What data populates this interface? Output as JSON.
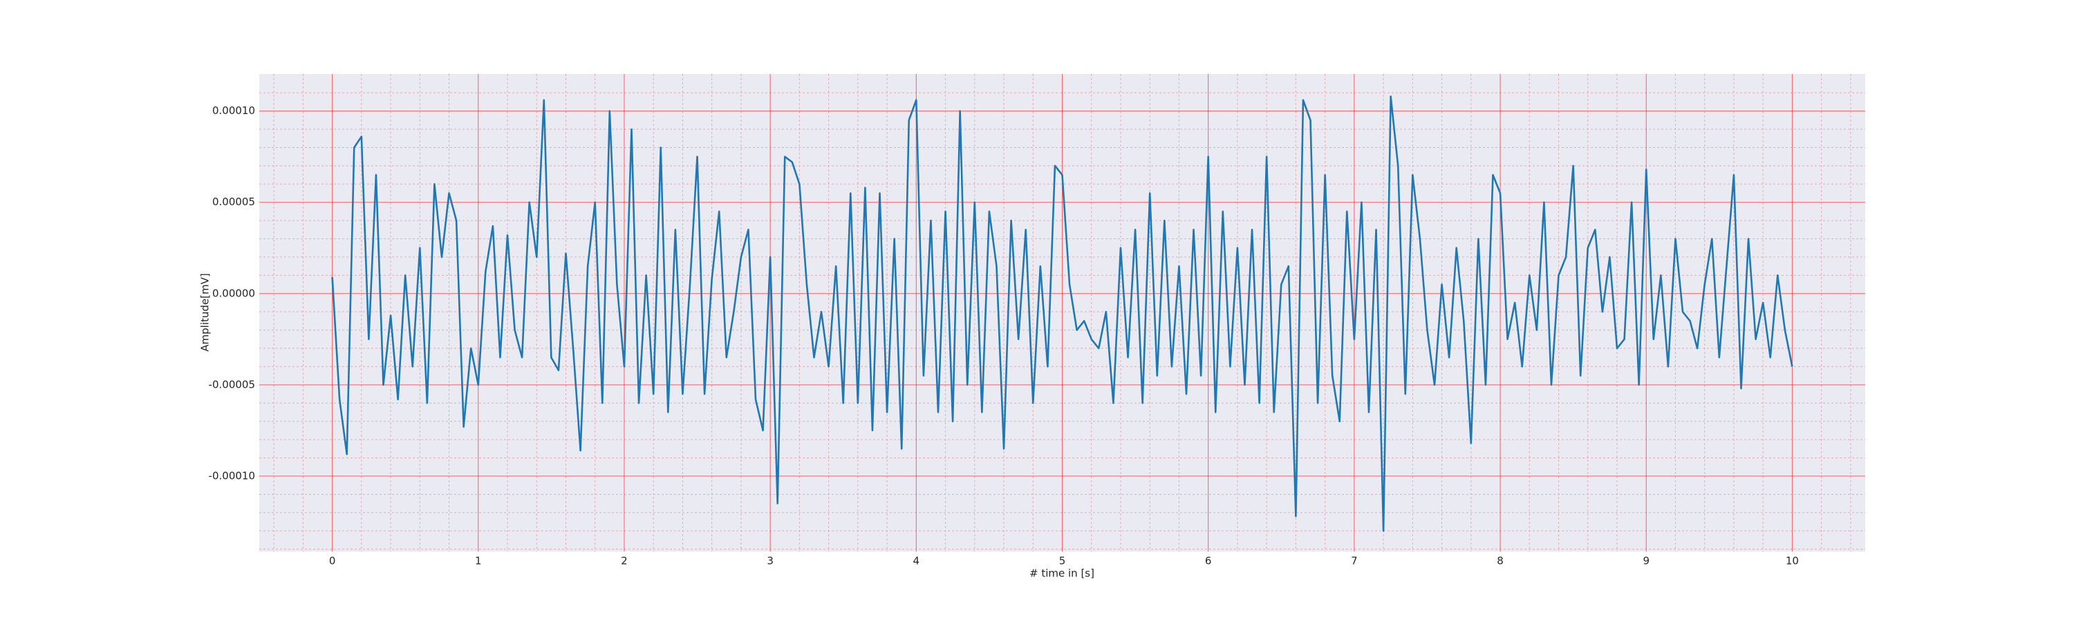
{
  "chart_data": {
    "type": "line",
    "x_label": "# time in [s]",
    "y_label": "Amplitude[mV]",
    "color": "#1f77b4",
    "grid": true,
    "minor_grid": true,
    "xlim": [
      -0.5,
      10.5
    ],
    "ylim": [
      -0.0001413,
      0.0001203
    ],
    "xticks": [
      0,
      1,
      2,
      3,
      4,
      5,
      6,
      7,
      8,
      9,
      10
    ],
    "yticks": [
      {
        "value": 0.0001,
        "label": "0.00010"
      },
      {
        "value": 5e-05,
        "label": "0.00005"
      },
      {
        "value": 0,
        "label": "0.00000"
      },
      {
        "value": -5e-05,
        "label": "-0.00005"
      },
      {
        "value": -0.0001,
        "label": "-0.00010"
      }
    ],
    "xminorticks": [
      -0.4,
      -0.2,
      0.2,
      0.4,
      0.6,
      0.8,
      1.2,
      1.4,
      1.6,
      1.8,
      2.2,
      2.4,
      2.6,
      2.8,
      3.2,
      3.4,
      3.6,
      3.8,
      4.2,
      4.4,
      4.6,
      4.8,
      5.2,
      5.4,
      5.6,
      5.8,
      6.2,
      6.4,
      6.6,
      6.8,
      7.2,
      7.4,
      7.6,
      7.8,
      8.2,
      8.4,
      8.6,
      8.8,
      9.2,
      9.4,
      9.6,
      9.8,
      10.2,
      10.4
    ],
    "yminorticks": [
      0.00011,
      9e-05,
      8e-05,
      7e-05,
      6e-05,
      4e-05,
      3e-05,
      2e-05,
      1e-05,
      -1e-05,
      -2e-05,
      -3e-05,
      -4e-05,
      -6e-05,
      -7e-05,
      -8e-05,
      -9e-05,
      -0.00011,
      -0.00012,
      -0.00013,
      -0.00014
    ],
    "x": [
      0,
      0.05,
      0.1,
      0.15,
      0.2,
      0.25,
      0.3,
      0.35,
      0.4,
      0.45,
      0.5,
      0.55,
      0.6,
      0.65,
      0.7,
      0.75,
      0.8,
      0.85,
      0.9,
      0.95,
      1,
      1.05,
      1.1,
      1.15,
      1.2,
      1.25,
      1.3,
      1.35,
      1.4,
      1.45,
      1.5,
      1.55,
      1.6,
      1.65,
      1.7,
      1.75,
      1.8,
      1.85,
      1.9,
      1.95,
      2,
      2.05,
      2.1,
      2.15,
      2.2,
      2.25,
      2.3,
      2.35,
      2.4,
      2.45,
      2.5,
      2.55,
      2.6,
      2.65,
      2.7,
      2.75,
      2.8,
      2.85,
      2.9,
      2.95,
      3,
      3.05,
      3.1,
      3.15,
      3.2,
      3.25,
      3.3,
      3.35,
      3.4,
      3.45,
      3.5,
      3.55,
      3.6,
      3.65,
      3.7,
      3.75,
      3.8,
      3.85,
      3.9,
      3.95,
      4,
      4.05,
      4.1,
      4.15,
      4.2,
      4.25,
      4.3,
      4.35,
      4.4,
      4.45,
      4.5,
      4.55,
      4.6,
      4.65,
      4.7,
      4.75,
      4.8,
      4.85,
      4.9,
      4.95,
      5,
      5.05,
      5.1,
      5.15,
      5.2,
      5.25,
      5.3,
      5.35,
      5.4,
      5.45,
      5.5,
      5.55,
      5.6,
      5.65,
      5.7,
      5.75,
      5.8,
      5.85,
      5.9,
      5.95,
      6,
      6.05,
      6.1,
      6.15,
      6.2,
      6.25,
      6.3,
      6.35,
      6.4,
      6.45,
      6.5,
      6.55,
      6.6,
      6.65,
      6.7,
      6.75,
      6.8,
      6.85,
      6.9,
      6.95,
      7,
      7.05,
      7.1,
      7.15,
      7.2,
      7.25,
      7.3,
      7.35,
      7.4,
      7.45,
      7.5,
      7.55,
      7.6,
      7.65,
      7.7,
      7.75,
      7.8,
      7.85,
      7.9,
      7.95,
      8,
      8.05,
      8.1,
      8.15,
      8.2,
      8.25,
      8.3,
      8.35,
      8.4,
      8.45,
      8.5,
      8.55,
      8.6,
      8.65,
      8.7,
      8.75,
      8.8,
      8.85,
      8.9,
      8.95,
      9,
      9.05,
      9.1,
      9.15,
      9.2,
      9.25,
      9.3,
      9.35,
      9.4,
      9.45,
      9.5,
      9.55,
      9.6,
      9.65,
      9.7,
      9.75,
      9.8,
      9.85,
      9.9,
      9.95,
      10
    ],
    "values": [
      9e-06,
      -5.8e-05,
      -8.8e-05,
      8e-05,
      8.6e-05,
      -2.5e-05,
      6.5e-05,
      -5e-05,
      -1.2e-05,
      -5.8e-05,
      1e-05,
      -4e-05,
      2.5e-05,
      -6e-05,
      6e-05,
      2e-05,
      5.5e-05,
      4e-05,
      -7.3e-05,
      -3e-05,
      -5e-05,
      1.2e-05,
      3.7e-05,
      -3.5e-05,
      3.2e-05,
      -2e-05,
      -3.5e-05,
      5e-05,
      2e-05,
      0.000106,
      -3.5e-05,
      -4.2e-05,
      2.2e-05,
      -3e-05,
      -8.6e-05,
      1.5e-05,
      5e-05,
      -6e-05,
      0.0001,
      5e-06,
      -4e-05,
      9e-05,
      -6e-05,
      1e-05,
      -5.5e-05,
      8e-05,
      -6.5e-05,
      3.5e-05,
      -5.5e-05,
      5e-06,
      7.5e-05,
      -5.5e-05,
      8e-06,
      4.5e-05,
      -3.5e-05,
      -1e-05,
      2e-05,
      3.5e-05,
      -5.8e-05,
      -7.5e-05,
      2e-05,
      -0.000115,
      7.5e-05,
      7.2e-05,
      6e-05,
      5e-06,
      -3.5e-05,
      -1e-05,
      -4e-05,
      1.5e-05,
      -6e-05,
      5.5e-05,
      -6e-05,
      5.8e-05,
      -7.5e-05,
      5.5e-05,
      -6.5e-05,
      3e-05,
      -8.5e-05,
      9.5e-05,
      0.000106,
      -4.5e-05,
      4e-05,
      -6.5e-05,
      4.5e-05,
      -7e-05,
      0.0001,
      -5e-05,
      5e-05,
      -6.5e-05,
      4.5e-05,
      1.5e-05,
      -8.5e-05,
      4e-05,
      -2.5e-05,
      3.5e-05,
      -6e-05,
      1.5e-05,
      -4e-05,
      7e-05,
      6.5e-05,
      5e-06,
      -2e-05,
      -1.5e-05,
      -2.5e-05,
      -3e-05,
      -1e-05,
      -6e-05,
      2.5e-05,
      -3.5e-05,
      3.5e-05,
      -6e-05,
      5.5e-05,
      -4.5e-05,
      4e-05,
      -4e-05,
      1.5e-05,
      -5.5e-05,
      3.5e-05,
      -4.5e-05,
      7.5e-05,
      -6.5e-05,
      4.5e-05,
      -4e-05,
      2.5e-05,
      -5e-05,
      3.5e-05,
      -6e-05,
      7.5e-05,
      -6.5e-05,
      5e-06,
      1.5e-05,
      -0.000122,
      0.000106,
      9.5e-05,
      -6e-05,
      6.5e-05,
      -4.5e-05,
      -7e-05,
      4.5e-05,
      -2.5e-05,
      5e-05,
      -6.5e-05,
      3.5e-05,
      -0.00013,
      0.000108,
      7e-05,
      -5.5e-05,
      6.5e-05,
      3e-05,
      -2e-05,
      -5e-05,
      5e-06,
      -3.5e-05,
      2.5e-05,
      -1.5e-05,
      -8.2e-05,
      3e-05,
      -5e-05,
      6.5e-05,
      5.5e-05,
      -2.5e-05,
      -5e-06,
      -4e-05,
      1e-05,
      -2e-05,
      5e-05,
      -5e-05,
      1e-05,
      2e-05,
      7e-05,
      -4.5e-05,
      2.5e-05,
      3.5e-05,
      -1e-05,
      2e-05,
      -3e-05,
      -2.5e-05,
      5e-05,
      -5e-05,
      6.8e-05,
      -2.5e-05,
      1e-05,
      -4e-05,
      3e-05,
      -1e-05,
      -1.5e-05,
      -3e-05,
      5e-06,
      3e-05,
      -3.5e-05,
      1.5e-05,
      6.5e-05,
      -5.2e-05,
      3e-05,
      -2.5e-05,
      -5e-06,
      -3.5e-05,
      1e-05,
      -2e-05,
      -4e-05
    ]
  }
}
